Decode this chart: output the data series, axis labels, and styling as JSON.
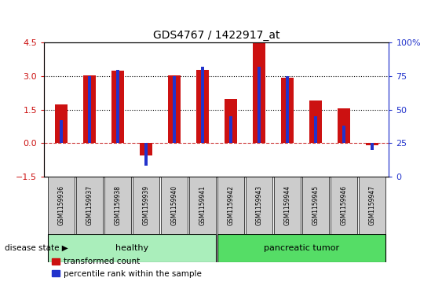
{
  "title": "GDS4767 / 1422917_at",
  "samples": [
    "GSM1159936",
    "GSM1159937",
    "GSM1159938",
    "GSM1159939",
    "GSM1159940",
    "GSM1159941",
    "GSM1159942",
    "GSM1159943",
    "GSM1159944",
    "GSM1159945",
    "GSM1159946",
    "GSM1159947"
  ],
  "transformed_count": [
    1.75,
    3.05,
    3.25,
    -0.55,
    3.05,
    3.3,
    2.0,
    4.5,
    2.95,
    1.9,
    1.55,
    -0.1
  ],
  "percentile_rank": [
    42,
    75,
    80,
    8,
    75,
    82,
    45,
    82,
    75,
    45,
    38,
    20
  ],
  "healthy_count": 6,
  "pancreatic_count": 6,
  "ylim_left": [
    -1.5,
    4.5
  ],
  "ylim_right": [
    0,
    100
  ],
  "yticks_left": [
    -1.5,
    0,
    1.5,
    3.0,
    4.5
  ],
  "yticks_right": [
    0,
    25,
    50,
    75,
    100
  ],
  "bar_color_red": "#cc1111",
  "bar_color_blue": "#2233cc",
  "zero_line_color": "#cc3333",
  "grid_color": "black",
  "healthy_bg": "#aaeebb",
  "tumor_bg": "#55dd66",
  "label_bg": "#cccccc",
  "legend_red_label": "transformed count",
  "legend_blue_label": "percentile rank within the sample",
  "disease_state_label": "disease state",
  "healthy_label": "healthy",
  "tumor_label": "pancreatic tumor",
  "dotted_lines": [
    1.5,
    3.0
  ]
}
